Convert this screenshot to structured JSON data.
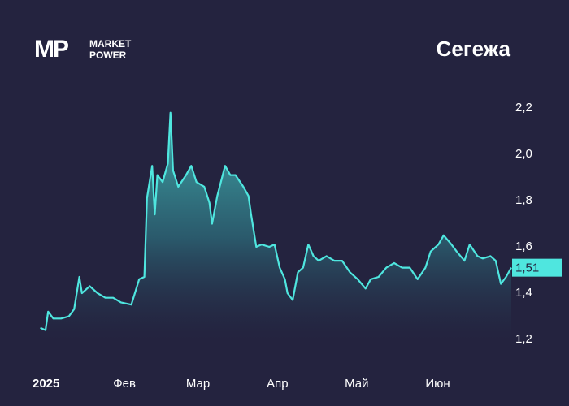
{
  "chart_data": {
    "type": "area",
    "title": "Сегежа",
    "logo": "MP",
    "logo_text": [
      "MARKET",
      "POWER"
    ],
    "x": [
      4,
      6,
      7,
      9,
      12,
      15,
      17,
      19,
      20,
      23,
      26,
      29,
      32,
      35,
      39,
      42,
      44,
      45,
      47,
      48,
      49,
      51,
      53,
      54,
      55,
      57,
      60,
      62,
      64,
      67,
      69,
      70,
      72,
      75,
      77,
      79,
      82,
      84,
      85,
      87,
      89,
      92,
      94,
      96,
      98,
      99,
      101,
      103,
      105,
      107,
      109,
      111,
      114,
      117,
      120,
      123,
      126,
      129,
      131,
      134,
      137,
      140,
      143,
      146,
      149,
      152,
      154,
      157,
      159,
      162,
      164,
      167,
      169,
      172,
      174,
      177,
      179,
      181,
      183,
      185
    ],
    "series": [
      {
        "color": "#4fe6df",
        "values": [
          1.25,
          1.24,
          1.32,
          1.29,
          1.29,
          1.3,
          1.33,
          1.47,
          1.4,
          1.43,
          1.4,
          1.38,
          1.38,
          1.36,
          1.35,
          1.46,
          1.47,
          1.81,
          1.95,
          1.74,
          1.91,
          1.88,
          1.96,
          2.18,
          1.93,
          1.86,
          1.91,
          1.95,
          1.88,
          1.86,
          1.79,
          1.7,
          1.82,
          1.95,
          1.91,
          1.91,
          1.86,
          1.82,
          1.74,
          1.6,
          1.61,
          1.6,
          1.61,
          1.51,
          1.46,
          1.4,
          1.37,
          1.49,
          1.51,
          1.61,
          1.56,
          1.54,
          1.56,
          1.54,
          1.54,
          1.49,
          1.46,
          1.42,
          1.46,
          1.47,
          1.51,
          1.53,
          1.51,
          1.51,
          1.46,
          1.51,
          1.58,
          1.61,
          1.65,
          1.61,
          1.58,
          1.54,
          1.61,
          1.56,
          1.55,
          1.56,
          1.54,
          1.44,
          1.47,
          1.51
        ]
      }
    ],
    "last_price": {
      "value": 1.51,
      "label": "1,51"
    },
    "xlim": [
      1,
      200
    ],
    "xticks": [
      {
        "value": 1,
        "label": "2025"
      },
      {
        "value": 32,
        "label": "Фев"
      },
      {
        "value": 60,
        "label": "Мар"
      },
      {
        "value": 91,
        "label": "Апр"
      },
      {
        "value": 121,
        "label": "Май"
      },
      {
        "value": 152,
        "label": "Июн"
      }
    ],
    "ylim": [
      1.2,
      2.3
    ],
    "yticks": [
      {
        "value": 1.2,
        "label": "1,2"
      },
      {
        "value": 1.4,
        "label": "1,4"
      },
      {
        "value": 1.6,
        "label": "1,6"
      },
      {
        "value": 1.8,
        "label": "1,8"
      },
      {
        "value": 2.0,
        "label": "2,0"
      },
      {
        "value": 2.2,
        "label": "2,2"
      }
    ],
    "grid": false
  }
}
